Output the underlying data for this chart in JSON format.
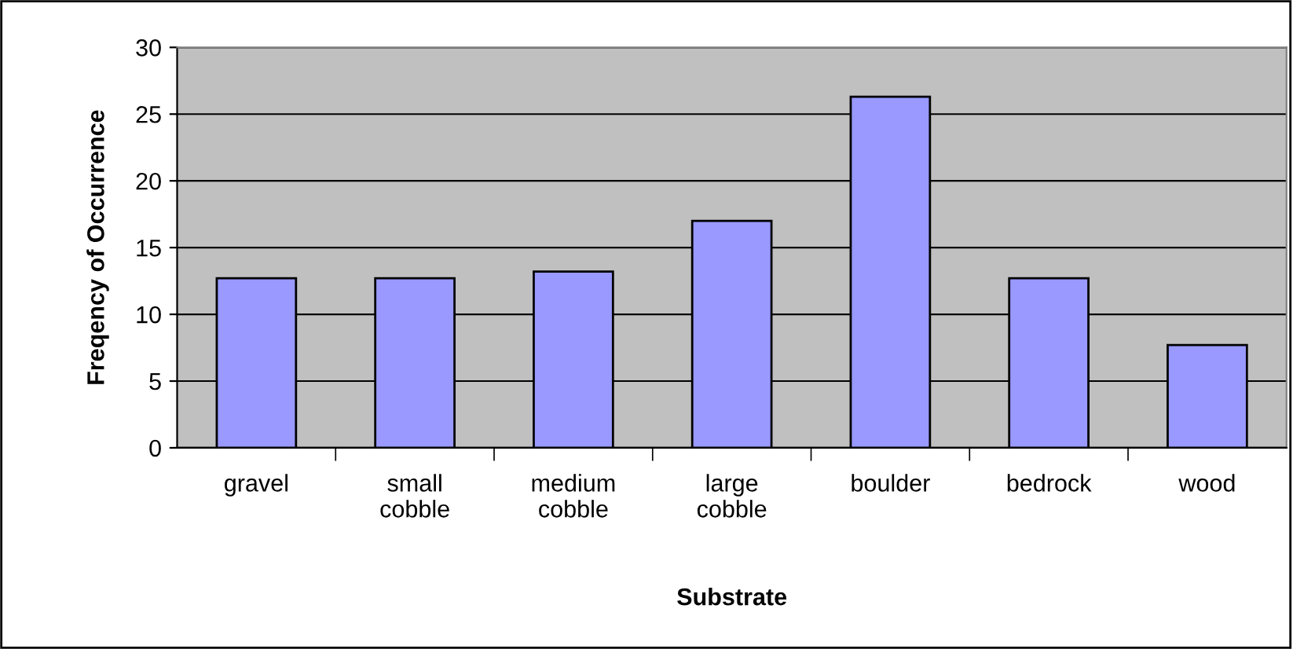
{
  "chart_data": {
    "type": "bar",
    "xlabel": "Substrate",
    "ylabel": "Freqency of Occurrence",
    "categories": [
      "gravel",
      "small cobble",
      "medium cobble",
      "large cobble",
      "boulder",
      "bedrock",
      "wood"
    ],
    "values": [
      12.7,
      12.7,
      13.2,
      17.0,
      26.3,
      12.7,
      7.7
    ],
    "color": "#9999ff",
    "ylim": [
      0,
      30
    ],
    "yticks": [
      0,
      5,
      10,
      15,
      20,
      25,
      30
    ],
    "grid": "y",
    "legend": false
  }
}
